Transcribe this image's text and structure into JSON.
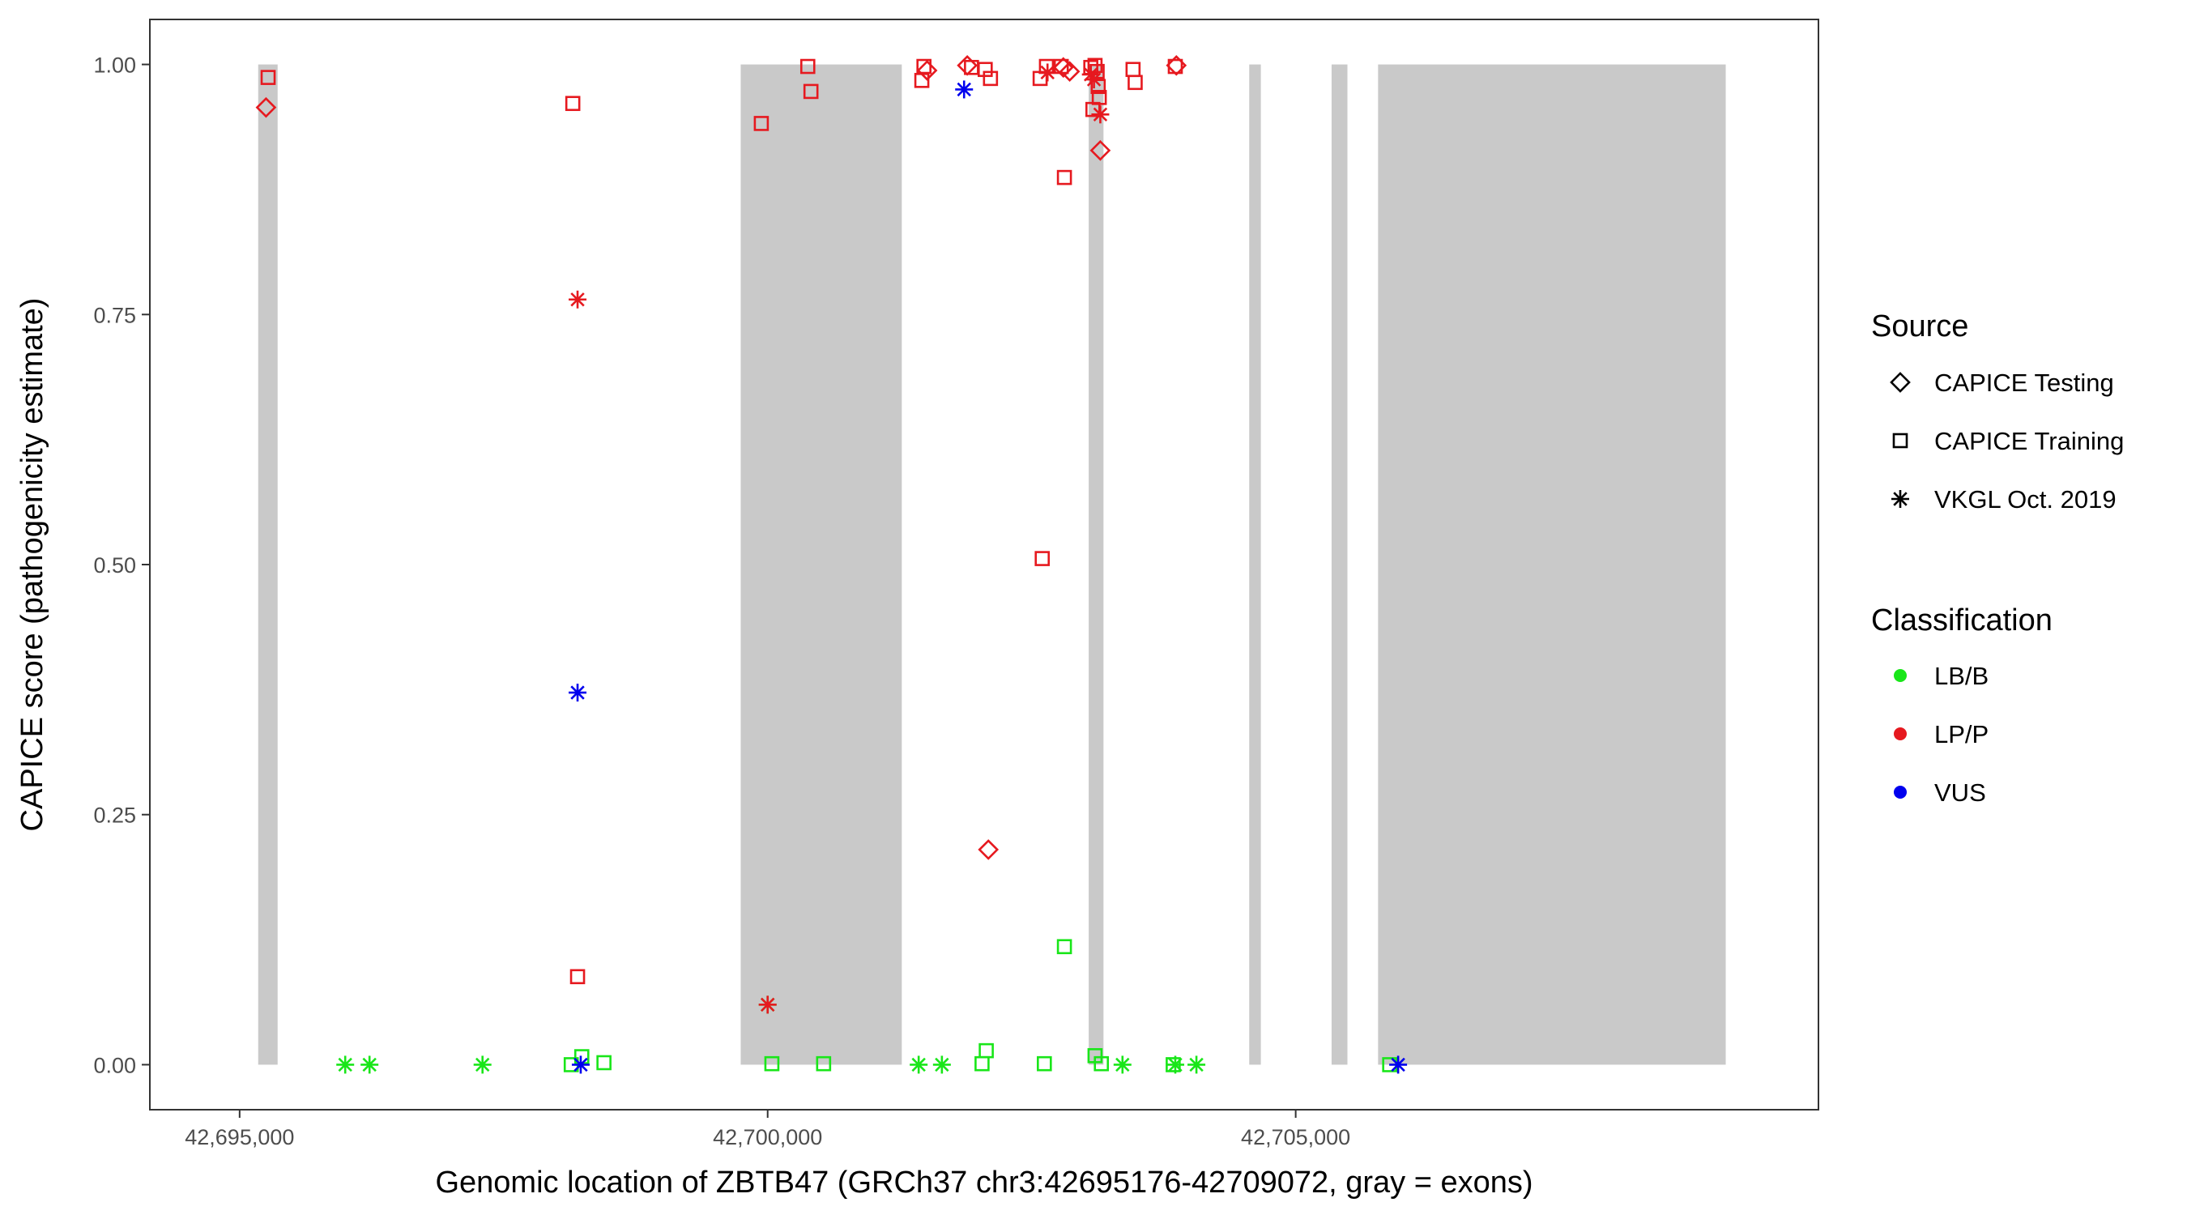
{
  "chart_data": {
    "type": "scatter",
    "xlabel": "Genomic location of ZBTB47 (GRCh37 chr3:42695176-42709072, gray = exons)",
    "ylabel": "CAPICE score (pathogenicity estimate)",
    "xlim": [
      42694150,
      42709950
    ],
    "ylim": [
      -0.045,
      1.045
    ],
    "x_ticks": [
      {
        "value": 42695000,
        "label": "42,695,000"
      },
      {
        "value": 42700000,
        "label": "42,700,000"
      },
      {
        "value": 42705000,
        "label": "42,705,000"
      }
    ],
    "y_ticks": [
      {
        "value": 0.0,
        "label": "0.00"
      },
      {
        "value": 0.25,
        "label": "0.25"
      },
      {
        "value": 0.5,
        "label": "0.50"
      },
      {
        "value": 0.75,
        "label": "0.75"
      },
      {
        "value": 1.0,
        "label": "1.00"
      }
    ],
    "grid": false,
    "exons": [
      {
        "start": 42695176,
        "end": 42695360
      },
      {
        "start": 42699745,
        "end": 42701270
      },
      {
        "start": 42703040,
        "end": 42703180
      },
      {
        "start": 42704560,
        "end": 42704670
      },
      {
        "start": 42705340,
        "end": 42705490
      },
      {
        "start": 42705780,
        "end": 42709072
      }
    ],
    "exon_color": "#c9c9c9",
    "legends": [
      {
        "title": "Source",
        "placement": "right",
        "entries": [
          {
            "label": "CAPICE Testing",
            "shape": "diamond"
          },
          {
            "label": "CAPICE Training",
            "shape": "square"
          },
          {
            "label": "VKGL Oct. 2019",
            "shape": "asterisk"
          }
        ]
      },
      {
        "title": "Classification",
        "placement": "right",
        "entries": [
          {
            "label": "LB/B",
            "color": "#19e619"
          },
          {
            "label": "LP/P",
            "color": "#e6191f"
          },
          {
            "label": "VUS",
            "color": "#0000ee"
          }
        ]
      }
    ],
    "classification_colors": {
      "LB/B": "#19e619",
      "LP/P": "#e6191f",
      "VUS": "#0000ee"
    },
    "points": [
      {
        "x": 42695270,
        "y": 0.987,
        "shape": "square",
        "cls": "LP/P"
      },
      {
        "x": 42695250,
        "y": 0.957,
        "shape": "diamond",
        "cls": "LP/P"
      },
      {
        "x": 42696000,
        "y": 0.0,
        "shape": "asterisk",
        "cls": "LB/B"
      },
      {
        "x": 42696230,
        "y": 0.0,
        "shape": "asterisk",
        "cls": "LB/B"
      },
      {
        "x": 42697300,
        "y": 0.0,
        "shape": "asterisk",
        "cls": "LB/B"
      },
      {
        "x": 42698155,
        "y": 0.961,
        "shape": "square",
        "cls": "LP/P"
      },
      {
        "x": 42698200,
        "y": 0.765,
        "shape": "asterisk",
        "cls": "LP/P"
      },
      {
        "x": 42698200,
        "y": 0.372,
        "shape": "asterisk",
        "cls": "VUS"
      },
      {
        "x": 42698200,
        "y": 0.088,
        "shape": "square",
        "cls": "LP/P"
      },
      {
        "x": 42698140,
        "y": 0.0,
        "shape": "square",
        "cls": "LB/B"
      },
      {
        "x": 42698240,
        "y": 0.008,
        "shape": "square",
        "cls": "LB/B"
      },
      {
        "x": 42698230,
        "y": 0.0,
        "shape": "asterisk",
        "cls": "VUS"
      },
      {
        "x": 42698450,
        "y": 0.002,
        "shape": "square",
        "cls": "LB/B"
      },
      {
        "x": 42699940,
        "y": 0.941,
        "shape": "square",
        "cls": "LP/P"
      },
      {
        "x": 42700000,
        "y": 0.06,
        "shape": "asterisk",
        "cls": "LB/B"
      },
      {
        "x": 42700000,
        "y": 0.06,
        "shape": "asterisk",
        "cls": "LP/P"
      },
      {
        "x": 42700040,
        "y": 0.001,
        "shape": "square",
        "cls": "LB/B"
      },
      {
        "x": 42700380,
        "y": 0.998,
        "shape": "square",
        "cls": "LP/P"
      },
      {
        "x": 42700410,
        "y": 0.973,
        "shape": "square",
        "cls": "LP/P"
      },
      {
        "x": 42700530,
        "y": 0.001,
        "shape": "square",
        "cls": "LB/B"
      },
      {
        "x": 42701480,
        "y": 0.998,
        "shape": "square",
        "cls": "LP/P"
      },
      {
        "x": 42701510,
        "y": 0.994,
        "shape": "diamond",
        "cls": "LP/P"
      },
      {
        "x": 42701460,
        "y": 0.984,
        "shape": "square",
        "cls": "LP/P"
      },
      {
        "x": 42701430,
        "y": 0.0,
        "shape": "asterisk",
        "cls": "LB/B"
      },
      {
        "x": 42701650,
        "y": 0.0,
        "shape": "asterisk",
        "cls": "LB/B"
      },
      {
        "x": 42701890,
        "y": 0.999,
        "shape": "diamond",
        "cls": "LP/P"
      },
      {
        "x": 42701930,
        "y": 0.997,
        "shape": "square",
        "cls": "LP/P"
      },
      {
        "x": 42701860,
        "y": 0.975,
        "shape": "asterisk",
        "cls": "VUS"
      },
      {
        "x": 42702060,
        "y": 0.995,
        "shape": "square",
        "cls": "LP/P"
      },
      {
        "x": 42702110,
        "y": 0.986,
        "shape": "square",
        "cls": "LP/P"
      },
      {
        "x": 42702090,
        "y": 0.215,
        "shape": "diamond",
        "cls": "LP/P"
      },
      {
        "x": 42702030,
        "y": 0.001,
        "shape": "square",
        "cls": "LB/B"
      },
      {
        "x": 42702070,
        "y": 0.014,
        "shape": "square",
        "cls": "LB/B"
      },
      {
        "x": 42702580,
        "y": 0.986,
        "shape": "square",
        "cls": "LP/P"
      },
      {
        "x": 42702640,
        "y": 0.998,
        "shape": "square",
        "cls": "LP/P"
      },
      {
        "x": 42702650,
        "y": 0.992,
        "shape": "asterisk",
        "cls": "LP/P"
      },
      {
        "x": 42702780,
        "y": 0.998,
        "shape": "square",
        "cls": "LP/P"
      },
      {
        "x": 42702800,
        "y": 0.997,
        "shape": "diamond",
        "cls": "LP/P"
      },
      {
        "x": 42702860,
        "y": 0.993,
        "shape": "diamond",
        "cls": "LP/P"
      },
      {
        "x": 42702810,
        "y": 0.887,
        "shape": "square",
        "cls": "LP/P"
      },
      {
        "x": 42702600,
        "y": 0.506,
        "shape": "square",
        "cls": "LP/P"
      },
      {
        "x": 42702810,
        "y": 0.118,
        "shape": "square",
        "cls": "LB/B"
      },
      {
        "x": 42702620,
        "y": 0.001,
        "shape": "square",
        "cls": "LB/B"
      },
      {
        "x": 42703060,
        "y": 0.997,
        "shape": "square",
        "cls": "LP/P"
      },
      {
        "x": 42703100,
        "y": 0.999,
        "shape": "square",
        "cls": "LP/P"
      },
      {
        "x": 42703060,
        "y": 0.99,
        "shape": "asterisk",
        "cls": "LP/P"
      },
      {
        "x": 42703090,
        "y": 0.985,
        "shape": "asterisk",
        "cls": "LP/P"
      },
      {
        "x": 42703120,
        "y": 0.993,
        "shape": "square",
        "cls": "LP/P"
      },
      {
        "x": 42703080,
        "y": 0.955,
        "shape": "square",
        "cls": "LP/P"
      },
      {
        "x": 42703130,
        "y": 0.978,
        "shape": "square",
        "cls": "LP/P"
      },
      {
        "x": 42703140,
        "y": 0.967,
        "shape": "square",
        "cls": "LP/P"
      },
      {
        "x": 42703150,
        "y": 0.95,
        "shape": "asterisk",
        "cls": "LP/P"
      },
      {
        "x": 42703150,
        "y": 0.914,
        "shape": "diamond",
        "cls": "LP/P"
      },
      {
        "x": 42703100,
        "y": 0.009,
        "shape": "square",
        "cls": "LB/B"
      },
      {
        "x": 42703160,
        "y": 0.001,
        "shape": "square",
        "cls": "LB/B"
      },
      {
        "x": 42703360,
        "y": 0.0,
        "shape": "asterisk",
        "cls": "LB/B"
      },
      {
        "x": 42703460,
        "y": 0.995,
        "shape": "square",
        "cls": "LP/P"
      },
      {
        "x": 42703480,
        "y": 0.982,
        "shape": "square",
        "cls": "LP/P"
      },
      {
        "x": 42703860,
        "y": 0.998,
        "shape": "square",
        "cls": "LP/P"
      },
      {
        "x": 42703870,
        "y": 0.999,
        "shape": "diamond",
        "cls": "LP/P"
      },
      {
        "x": 42703840,
        "y": 0.0,
        "shape": "square",
        "cls": "LB/B"
      },
      {
        "x": 42703860,
        "y": 0.0,
        "shape": "asterisk",
        "cls": "LB/B"
      },
      {
        "x": 42704060,
        "y": 0.0,
        "shape": "asterisk",
        "cls": "LB/B"
      },
      {
        "x": 42705890,
        "y": 0.0,
        "shape": "square",
        "cls": "LB/B"
      },
      {
        "x": 42705970,
        "y": 0.0,
        "shape": "asterisk",
        "cls": "VUS"
      }
    ]
  }
}
